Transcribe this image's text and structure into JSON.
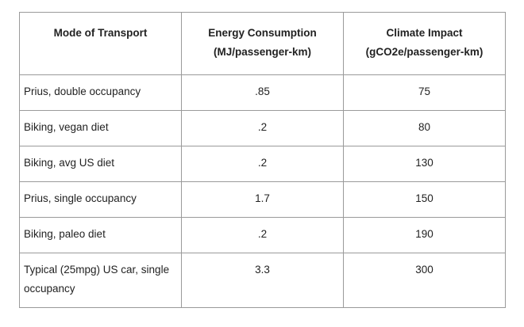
{
  "table": {
    "headers": [
      {
        "line1": "Mode of Transport",
        "line2": ""
      },
      {
        "line1": "Energy Consumption",
        "line2": "(MJ/passenger-km)"
      },
      {
        "line1": "Climate Impact",
        "line2": "(gCO2e/passenger-km)"
      }
    ],
    "rows": [
      {
        "mode": "Prius, double occupancy",
        "energy": ".85",
        "climate": "75"
      },
      {
        "mode": "Biking, vegan diet",
        "energy": ".2",
        "climate": "80"
      },
      {
        "mode": "Biking, avg US diet",
        "energy": ".2",
        "climate": "130"
      },
      {
        "mode": "Prius, single occupancy",
        "energy": "1.7",
        "climate": "150"
      },
      {
        "mode": "Biking, paleo diet",
        "energy": ".2",
        "climate": "190"
      },
      {
        "mode": "Typical (25mpg) US car, single occupancy",
        "energy": "3.3",
        "climate": "300"
      }
    ]
  }
}
